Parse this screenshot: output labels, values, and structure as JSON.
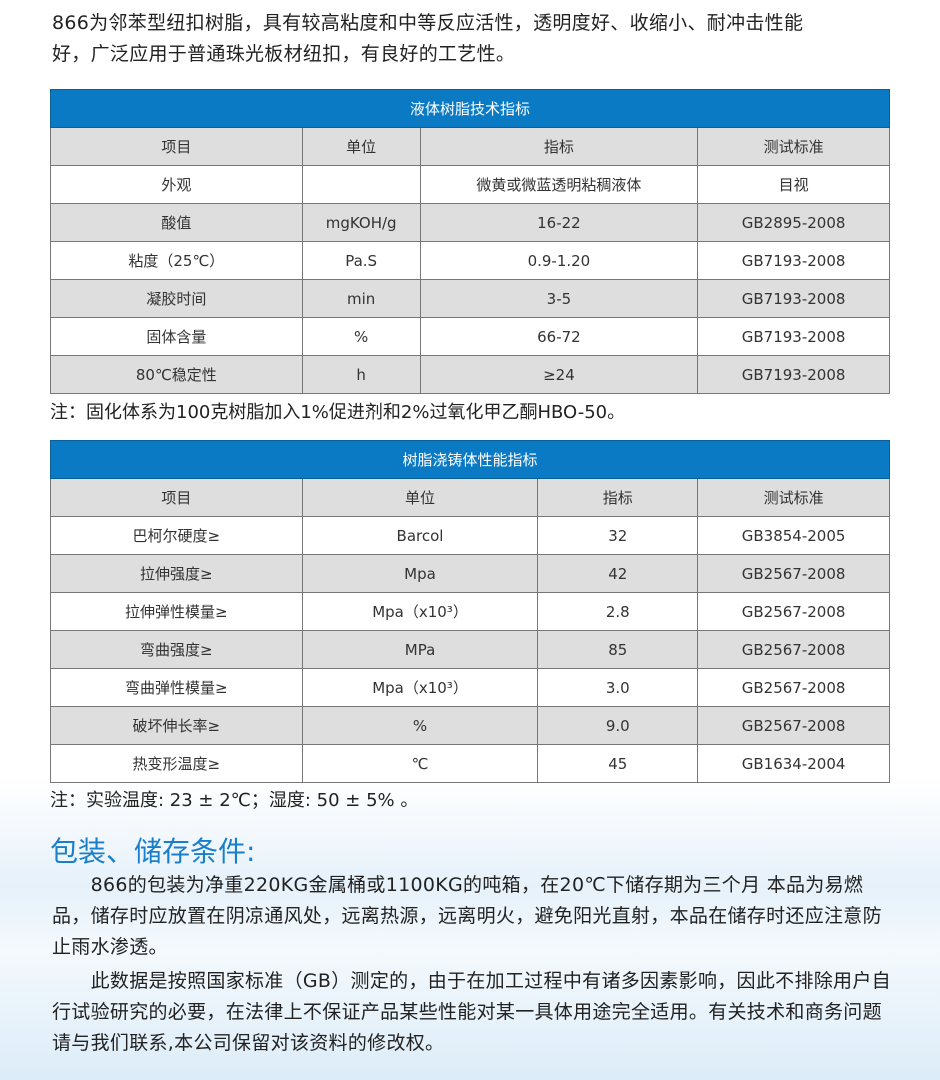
{
  "intro": [
    "866为邻苯型纽扣树脂，具有较高粘度和中等反应活性，透明度好、收缩小、耐冲击性能",
    "好，广泛应用于普通珠光板材纽扣，有良好的工艺性。"
  ],
  "table1": {
    "title": "液体树脂技术指标",
    "headers": [
      "项目",
      "单位",
      "指标",
      "测试标准"
    ],
    "rows": [
      [
        "外观",
        "",
        "微黄或微蓝透明粘稠液体",
        "目视"
      ],
      [
        "酸值",
        "mgKOH/g",
        "16-22",
        "GB2895-2008"
      ],
      [
        "粘度（25℃）",
        "Pa.S",
        "0.9-1.20",
        "GB7193-2008"
      ],
      [
        "凝胶时间",
        "min",
        "3-5",
        "GB7193-2008"
      ],
      [
        "固体含量",
        "%",
        "66-72",
        "GB7193-2008"
      ],
      [
        "80℃稳定性",
        "h",
        "≥24",
        "GB7193-2008"
      ]
    ]
  },
  "note1": "注：固化体系为100克树脂加入1%促进剂和2%过氧化甲乙酮HBO-50。",
  "table2": {
    "title": "树脂浇铸体性能指标",
    "headers": [
      "项目",
      "单位",
      "指标",
      "测试标准"
    ],
    "rows": [
      [
        "巴柯尔硬度≥",
        "Barcol",
        "32",
        "GB3854-2005"
      ],
      [
        "拉伸强度≥",
        "Mpa",
        "42",
        "GB2567-2008"
      ],
      [
        "拉伸弹性模量≥",
        "Mpa（x10³）",
        "2.8",
        "GB2567-2008"
      ],
      [
        "弯曲强度≥",
        "MPa",
        "85",
        "GB2567-2008"
      ],
      [
        "弯曲弹性模量≥",
        "Mpa（x10³）",
        "3.0",
        "GB2567-2008"
      ],
      [
        "破坏伸长率≥",
        "%",
        "9.0",
        "GB2567-2008"
      ],
      [
        "热变形温度≥",
        "℃",
        "45",
        "GB1634-2004"
      ]
    ]
  },
  "note2": "注：实验温度: 23 ± 2℃；湿度: 50 ± 5% 。",
  "section_title": "包装、储存条件:",
  "para1": "　　866的包装为净重220KG金属桶或1100KG的吨箱，在20℃下储存期为三个月 本品为易燃品，储存时应放置在阴凉通风处，远离热源，远离明火，避免阳光直射，本品在储存时还应注意防止雨水渗透。",
  "para2": "　　此数据是按照国家标准（GB）测定的，由于在加工过程中有诸多因素影响，因此不排除用户自行试验研究的必要，在法律上不保证产品某些性能对某一具体用途完全适用。有关技术和商务问题请与我们联系,本公司保留对该资料的修改权。",
  "colors": {
    "header_blue": "#0a7ac4",
    "title_blue": "#1a7fc9"
  }
}
